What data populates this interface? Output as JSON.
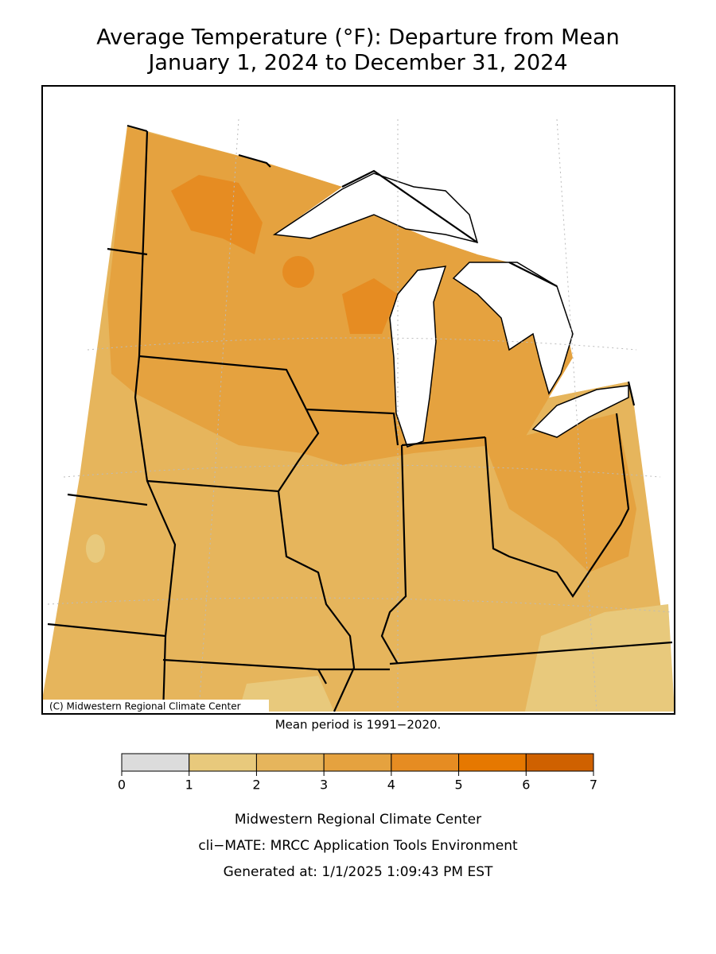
{
  "header": {
    "title": "Average Temperature (°F): Departure from Mean",
    "subtitle": "January 1, 2024 to December 31, 2024"
  },
  "map": {
    "credit": "(C) Midwestern Regional Climate Center",
    "note": "Mean period is 1991−2020."
  },
  "legend": {
    "ticks": [
      0,
      1,
      2,
      3,
      4,
      5,
      6,
      7
    ],
    "colors": [
      "#dcdcdc",
      "#e8c97c",
      "#e6b55c",
      "#e5a23f",
      "#e68c22",
      "#e67800",
      "#cf6100"
    ]
  },
  "footer": {
    "lines": [
      "Midwestern Regional Climate Center",
      "cli−MATE: MRCC Application Tools Environment",
      "Generated at: 1/1/2025 1:09:43 PM EST"
    ]
  }
}
